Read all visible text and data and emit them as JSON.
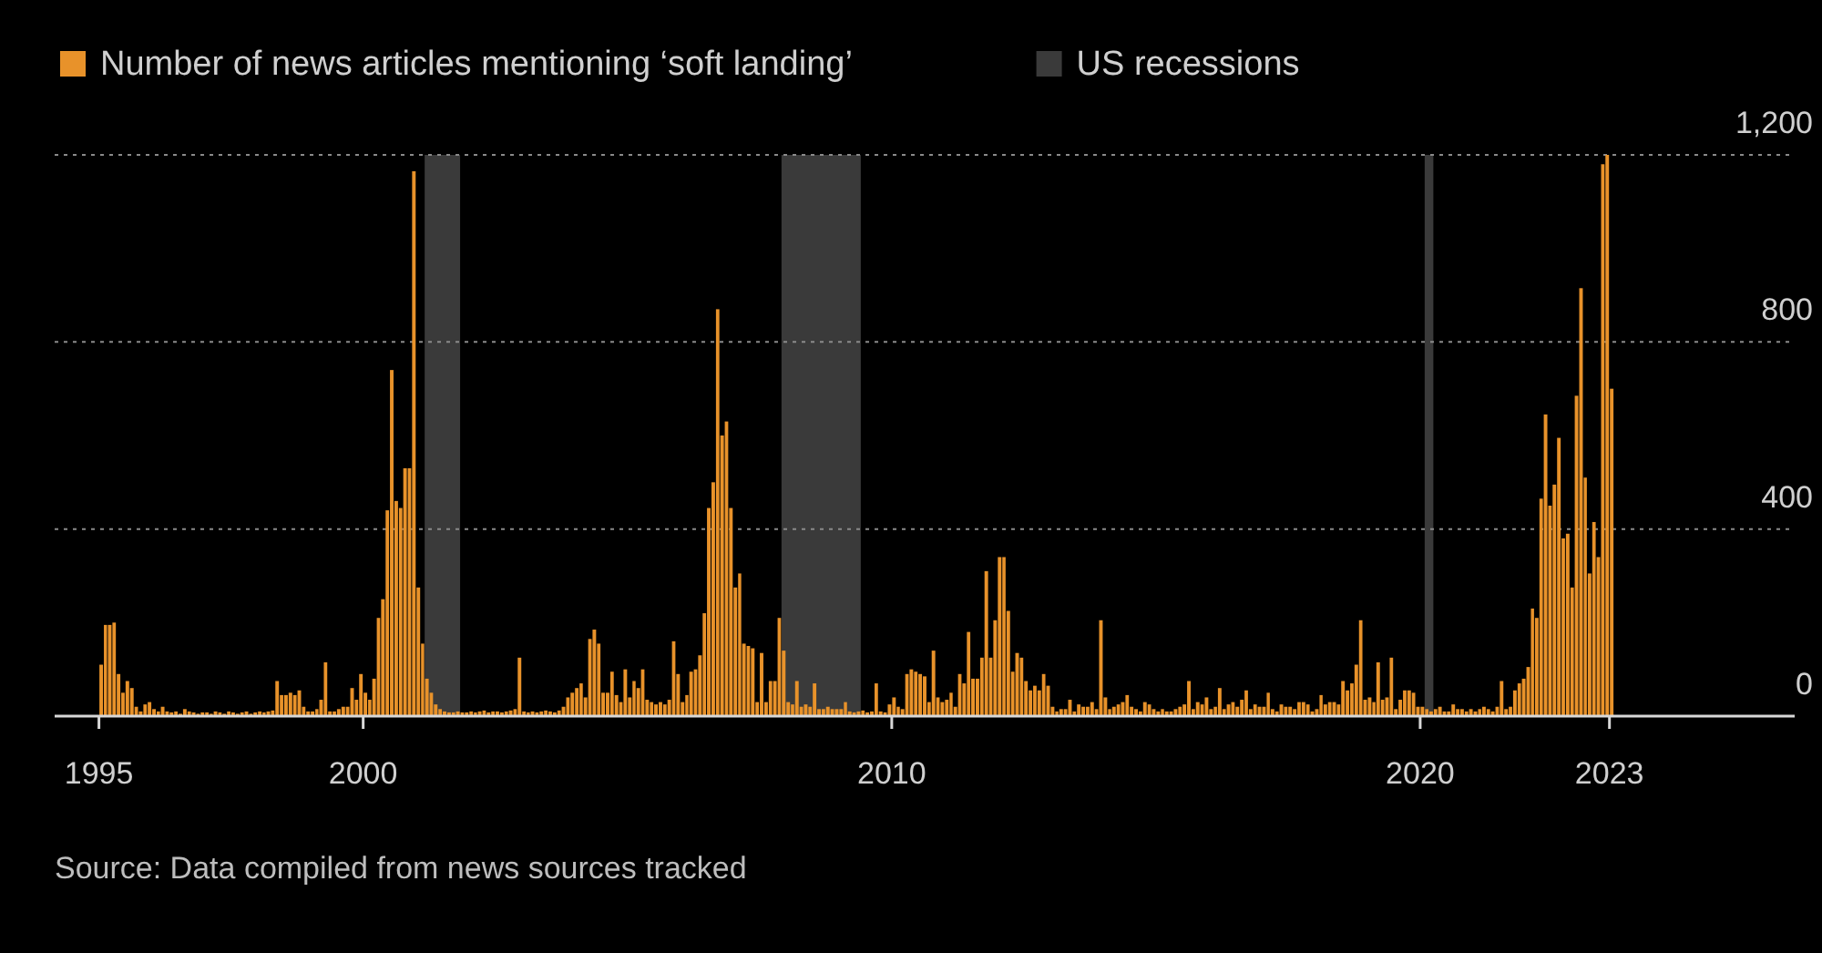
{
  "chart_data": {
    "type": "bar",
    "x": [
      "1995-01",
      "1995-02",
      "1995-03",
      "1995-04",
      "1995-05",
      "1995-06",
      "1995-07",
      "1995-08",
      "1995-09",
      "1995-10",
      "1995-11",
      "1995-12",
      "1996-01",
      "1996-02",
      "1996-03",
      "1996-04",
      "1996-05",
      "1996-06",
      "1996-07",
      "1996-08",
      "1996-09",
      "1996-10",
      "1996-11",
      "1996-12",
      "1997-01",
      "1997-02",
      "1997-03",
      "1997-04",
      "1997-05",
      "1997-06",
      "1997-07",
      "1997-08",
      "1997-09",
      "1997-10",
      "1997-11",
      "1997-12",
      "1998-01",
      "1998-02",
      "1998-03",
      "1998-04",
      "1998-05",
      "1998-06",
      "1998-07",
      "1998-08",
      "1998-09",
      "1998-10",
      "1998-11",
      "1998-12",
      "1999-01",
      "1999-02",
      "1999-03",
      "1999-04",
      "1999-05",
      "1999-06",
      "1999-07",
      "1999-08",
      "1999-09",
      "1999-10",
      "1999-11",
      "1999-12",
      "2000-01",
      "2000-02",
      "2000-03",
      "2000-04",
      "2000-05",
      "2000-06",
      "2000-07",
      "2000-08",
      "2000-09",
      "2000-10",
      "2000-11",
      "2000-12",
      "2001-01",
      "2001-02",
      "2001-03",
      "2001-04",
      "2001-05",
      "2001-06",
      "2001-07",
      "2001-08",
      "2001-09",
      "2001-10",
      "2001-11",
      "2001-12",
      "2002-01",
      "2002-02",
      "2002-03",
      "2002-04",
      "2002-05",
      "2002-06",
      "2002-07",
      "2002-08",
      "2002-09",
      "2002-10",
      "2002-11",
      "2002-12",
      "2003-01",
      "2003-02",
      "2003-03",
      "2003-04",
      "2003-05",
      "2003-06",
      "2003-07",
      "2003-08",
      "2003-09",
      "2003-10",
      "2003-11",
      "2003-12",
      "2004-01",
      "2004-02",
      "2004-03",
      "2004-04",
      "2004-05",
      "2004-06",
      "2004-07",
      "2004-08",
      "2004-09",
      "2004-10",
      "2004-11",
      "2004-12",
      "2005-01",
      "2005-02",
      "2005-03",
      "2005-04",
      "2005-05",
      "2005-06",
      "2005-07",
      "2005-08",
      "2005-09",
      "2005-10",
      "2005-11",
      "2005-12",
      "2006-01",
      "2006-02",
      "2006-03",
      "2006-04",
      "2006-05",
      "2006-06",
      "2006-07",
      "2006-08",
      "2006-09",
      "2006-10",
      "2006-11",
      "2006-12",
      "2007-01",
      "2007-02",
      "2007-03",
      "2007-04",
      "2007-05",
      "2007-06",
      "2007-07",
      "2007-08",
      "2007-09",
      "2007-10",
      "2007-11",
      "2007-12",
      "2008-01",
      "2008-02",
      "2008-03",
      "2008-04",
      "2008-05",
      "2008-06",
      "2008-07",
      "2008-08",
      "2008-09",
      "2008-10",
      "2008-11",
      "2008-12",
      "2009-01",
      "2009-02",
      "2009-03",
      "2009-04",
      "2009-05",
      "2009-06",
      "2009-07",
      "2009-08",
      "2009-09",
      "2009-10",
      "2009-11",
      "2009-12",
      "2010-01",
      "2010-02",
      "2010-03",
      "2010-04",
      "2010-05",
      "2010-06",
      "2010-07",
      "2010-08",
      "2010-09",
      "2010-10",
      "2010-11",
      "2010-12",
      "2011-01",
      "2011-02",
      "2011-03",
      "2011-04",
      "2011-05",
      "2011-06",
      "2011-07",
      "2011-08",
      "2011-09",
      "2011-10",
      "2011-11",
      "2011-12",
      "2012-01",
      "2012-02",
      "2012-03",
      "2012-04",
      "2012-05",
      "2012-06",
      "2012-07",
      "2012-08",
      "2012-09",
      "2012-10",
      "2012-11",
      "2012-12",
      "2013-01",
      "2013-02",
      "2013-03",
      "2013-04",
      "2013-05",
      "2013-06",
      "2013-07",
      "2013-08",
      "2013-09",
      "2013-10",
      "2013-11",
      "2013-12",
      "2014-01",
      "2014-02",
      "2014-03",
      "2014-04",
      "2014-05",
      "2014-06",
      "2014-07",
      "2014-08",
      "2014-09",
      "2014-10",
      "2014-11",
      "2014-12",
      "2015-01",
      "2015-02",
      "2015-03",
      "2015-04",
      "2015-05",
      "2015-06",
      "2015-07",
      "2015-08",
      "2015-09",
      "2015-10",
      "2015-11",
      "2015-12",
      "2016-01",
      "2016-02",
      "2016-03",
      "2016-04",
      "2016-05",
      "2016-06",
      "2016-07",
      "2016-08",
      "2016-09",
      "2016-10",
      "2016-11",
      "2016-12",
      "2017-01",
      "2017-02",
      "2017-03",
      "2017-04",
      "2017-05",
      "2017-06",
      "2017-07",
      "2017-08",
      "2017-09",
      "2017-10",
      "2017-11",
      "2017-12",
      "2018-01",
      "2018-02",
      "2018-03",
      "2018-04",
      "2018-05",
      "2018-06",
      "2018-07",
      "2018-08",
      "2018-09",
      "2018-10",
      "2018-11",
      "2018-12",
      "2019-01",
      "2019-02",
      "2019-03",
      "2019-04",
      "2019-05",
      "2019-06",
      "2019-07",
      "2019-08",
      "2019-09",
      "2019-10",
      "2019-11",
      "2019-12",
      "2020-01",
      "2020-02",
      "2020-03",
      "2020-04",
      "2020-05",
      "2020-06",
      "2020-07",
      "2020-08",
      "2020-09",
      "2020-10",
      "2020-11",
      "2020-12",
      "2021-01",
      "2021-02",
      "2021-03",
      "2021-04",
      "2021-05",
      "2021-06",
      "2021-07",
      "2021-08",
      "2021-09",
      "2021-10",
      "2021-11",
      "2021-12",
      "2022-01",
      "2022-02",
      "2022-03",
      "2022-04",
      "2022-05",
      "2022-06",
      "2022-07",
      "2022-08",
      "2022-09",
      "2022-10",
      "2022-11",
      "2022-12",
      "2023-01",
      "2023-02",
      "2023-03",
      "2023-04",
      "2023-05",
      "2023-06",
      "2023-07",
      "2023-08"
    ],
    "series": [
      {
        "name": "Number of news articles mentioning ‘soft landing’",
        "color": "#e8922a",
        "values": [
          110,
          195,
          195,
          200,
          90,
          50,
          75,
          60,
          20,
          10,
          25,
          30,
          15,
          10,
          20,
          10,
          8,
          10,
          5,
          15,
          10,
          8,
          5,
          8,
          8,
          5,
          10,
          8,
          5,
          10,
          8,
          5,
          8,
          10,
          5,
          8,
          10,
          8,
          10,
          12,
          75,
          45,
          45,
          50,
          45,
          55,
          20,
          10,
          10,
          15,
          35,
          115,
          10,
          10,
          15,
          20,
          20,
          60,
          35,
          90,
          50,
          35,
          80,
          210,
          250,
          440,
          740,
          460,
          445,
          530,
          530,
          1165,
          275,
          155,
          80,
          50,
          25,
          15,
          10,
          8,
          8,
          10,
          8,
          8,
          10,
          8,
          10,
          12,
          8,
          10,
          10,
          8,
          10,
          12,
          15,
          125,
          10,
          8,
          10,
          8,
          10,
          12,
          10,
          8,
          12,
          20,
          40,
          50,
          60,
          70,
          40,
          165,
          185,
          155,
          50,
          50,
          95,
          45,
          30,
          100,
          40,
          75,
          60,
          100,
          35,
          30,
          25,
          30,
          25,
          35,
          160,
          90,
          30,
          45,
          95,
          100,
          130,
          220,
          445,
          500,
          870,
          600,
          630,
          445,
          275,
          305,
          155,
          150,
          145,
          30,
          135,
          30,
          75,
          75,
          210,
          140,
          30,
          25,
          75,
          20,
          25,
          20,
          70,
          15,
          15,
          20,
          15,
          15,
          15,
          30,
          10,
          8,
          10,
          12,
          8,
          10,
          70,
          10,
          8,
          25,
          40,
          20,
          15,
          90,
          100,
          95,
          90,
          85,
          30,
          140,
          40,
          30,
          35,
          50,
          20,
          90,
          70,
          180,
          80,
          80,
          125,
          310,
          125,
          205,
          340,
          340,
          225,
          95,
          135,
          125,
          75,
          55,
          65,
          55,
          90,
          65,
          20,
          10,
          15,
          15,
          35,
          10,
          25,
          20,
          20,
          30,
          15,
          205,
          40,
          15,
          20,
          25,
          30,
          45,
          20,
          15,
          10,
          30,
          25,
          15,
          10,
          15,
          10,
          10,
          15,
          20,
          25,
          75,
          15,
          30,
          25,
          40,
          15,
          20,
          60,
          15,
          25,
          30,
          20,
          35,
          55,
          15,
          25,
          20,
          20,
          50,
          15,
          10,
          25,
          20,
          20,
          15,
          30,
          30,
          25,
          10,
          15,
          45,
          25,
          30,
          30,
          25,
          75,
          55,
          70,
          110,
          205,
          35,
          40,
          30,
          115,
          35,
          40,
          125,
          15,
          35,
          55,
          55,
          50,
          20,
          20,
          15,
          10,
          15,
          20,
          10,
          10,
          25,
          15,
          15,
          10,
          15,
          10,
          15,
          20,
          15,
          10,
          20,
          75,
          15,
          20,
          55,
          70,
          80,
          105,
          230,
          210,
          465,
          645,
          450,
          495,
          595,
          380,
          390,
          275,
          685,
          915,
          510,
          305,
          415,
          340,
          1180,
          1200,
          700
        ]
      }
    ],
    "xlim": [
      "1994-03",
      "2027-02"
    ],
    "xticks": [
      "1995",
      "2000",
      "2010",
      "2020",
      {
        "value": "2023-08",
        "label": "2023"
      }
    ],
    "ylim": [
      0,
      1200
    ],
    "yticks": [
      0,
      400,
      800,
      {
        "value": 1200,
        "label": "1,200"
      }
    ],
    "grid": "y",
    "legend": "top left",
    "bands": [
      {
        "axis": "x",
        "from": "2001-03",
        "to": "2001-11",
        "label": "US recessions",
        "color": "#3a3a3a"
      },
      {
        "axis": "x",
        "from": "2007-12",
        "to": "2009-06",
        "color": "#3a3a3a"
      },
      {
        "axis": "x",
        "from": "2020-02",
        "to": "2020-04",
        "color": "#3a3a3a"
      }
    ],
    "annotations": [
      "Source: Data compiled from news sources tracked"
    ]
  }
}
